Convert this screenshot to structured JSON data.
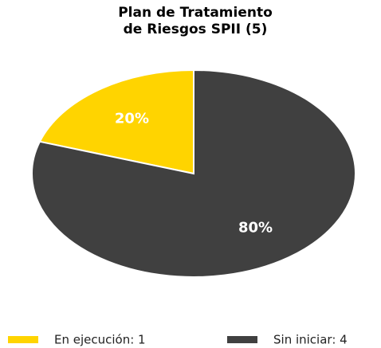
{
  "chart_data": {
    "type": "pie",
    "title": [
      "Plan de Tratamiento",
      "de Riesgos SPII (5)"
    ],
    "categories": [
      "En ejecución: 1",
      "Sin iniciar: 4"
    ],
    "values": [
      20,
      80
    ],
    "value_labels": [
      "20%",
      "80%"
    ],
    "colors": [
      "#ffd400",
      "#404040"
    ],
    "legend": "bottom"
  }
}
